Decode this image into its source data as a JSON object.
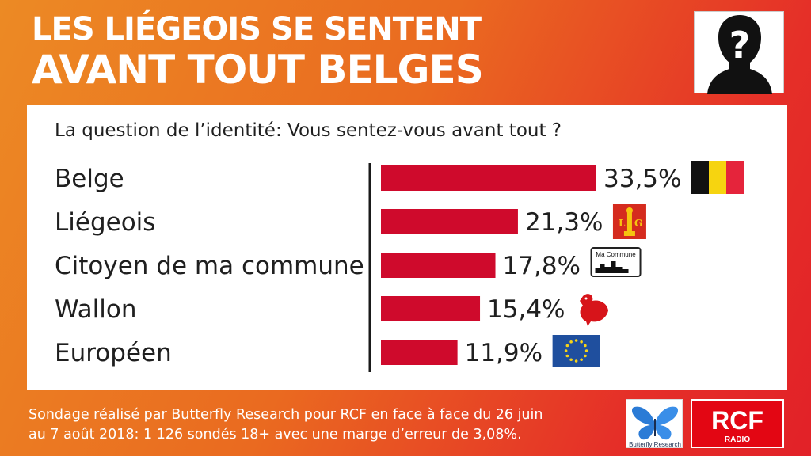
{
  "header": {
    "title_line1": "LES LIÉGEOIS SE SENTENT",
    "title_line2": "AVANT TOUT BELGES"
  },
  "question": "La question de l’identité: Vous sentez-vous avant tout ?",
  "chart_data": {
    "type": "bar",
    "orientation": "horizontal",
    "categories": [
      "Belge",
      "Liégeois",
      "Citoyen de ma commune",
      "Wallon",
      "Européen"
    ],
    "values": [
      33.5,
      21.3,
      17.8,
      15.4,
      11.9
    ],
    "value_labels": [
      "33,5%",
      "21,3%",
      "17,8%",
      "15,4%",
      "11,9%"
    ],
    "category_icons": [
      "belgian-flag-icon",
      "liege-flag-icon",
      "commune-sign-icon",
      "walloon-rooster-icon",
      "eu-flag-icon"
    ],
    "commune_sign_text": "Ma Commune",
    "bar_color": "#cf0a2c",
    "xlim": [
      0,
      35
    ]
  },
  "footer": {
    "line1": "Sondage réalisé par Butterfly Research pour RCF en face à face du 26 juin",
    "line2": "au 7 août 2018:  1 126 sondés 18+ avec une marge d’erreur de 3,08%."
  },
  "logos": {
    "butterfly_text": "Butterfly Research",
    "rcf_text": "RCF",
    "rcf_sub": "RADIO"
  },
  "colors": {
    "bar": "#cf0a2c",
    "belgian_black": "#111111",
    "belgian_yellow": "#f6d410",
    "belgian_red": "#e5243b",
    "eu_blue": "#1f4f9e",
    "eu_star": "#f7d417"
  }
}
